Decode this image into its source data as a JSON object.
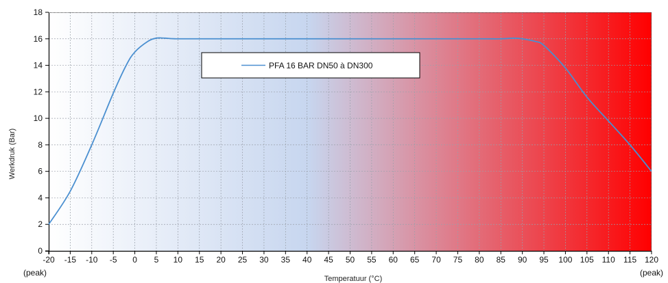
{
  "chart_data": {
    "type": "line",
    "xlabel": "Temperatuur (°C)",
    "ylabel": "Werkdruk (Bar)",
    "xlim": [
      -20,
      120
    ],
    "ylim": [
      0,
      18
    ],
    "x_ticks": [
      "-20",
      "-15",
      "-10",
      "-5",
      "0",
      "5",
      "10",
      "15",
      "20",
      "25",
      "30",
      "35",
      "40",
      "45",
      "50",
      "55",
      "60",
      "65",
      "70",
      "75",
      "80",
      "85",
      "90",
      "95",
      "100",
      "105",
      "110",
      "115",
      "120"
    ],
    "y_ticks": [
      "0",
      "2",
      "4",
      "6",
      "8",
      "10",
      "12",
      "14",
      "16",
      "18"
    ],
    "x_tick_sublabels": {
      "left": "(peak)",
      "right": "(peak)"
    },
    "grid": true,
    "background_gradient": {
      "start": "#ffffff",
      "mid": "#c7d6ef",
      "end": "#ff0000"
    },
    "legend_position": "top-center",
    "series": [
      {
        "name": "PFA 16 BAR DN50 à DN300",
        "color": "#4a8fd0",
        "x": [
          -20,
          -15,
          -10,
          -5,
          -2,
          0,
          3,
          5,
          7,
          10,
          20,
          40,
          60,
          80,
          85,
          88,
          90,
          93,
          95,
          100,
          105,
          110,
          115,
          120
        ],
        "y": [
          2.0,
          4.5,
          8.0,
          11.9,
          14.0,
          15.0,
          15.8,
          16.05,
          16.05,
          16.0,
          16.0,
          16.0,
          16.0,
          16.0,
          16.0,
          16.05,
          16.0,
          15.8,
          15.5,
          13.8,
          11.6,
          9.8,
          8.0,
          6.0
        ]
      }
    ]
  }
}
